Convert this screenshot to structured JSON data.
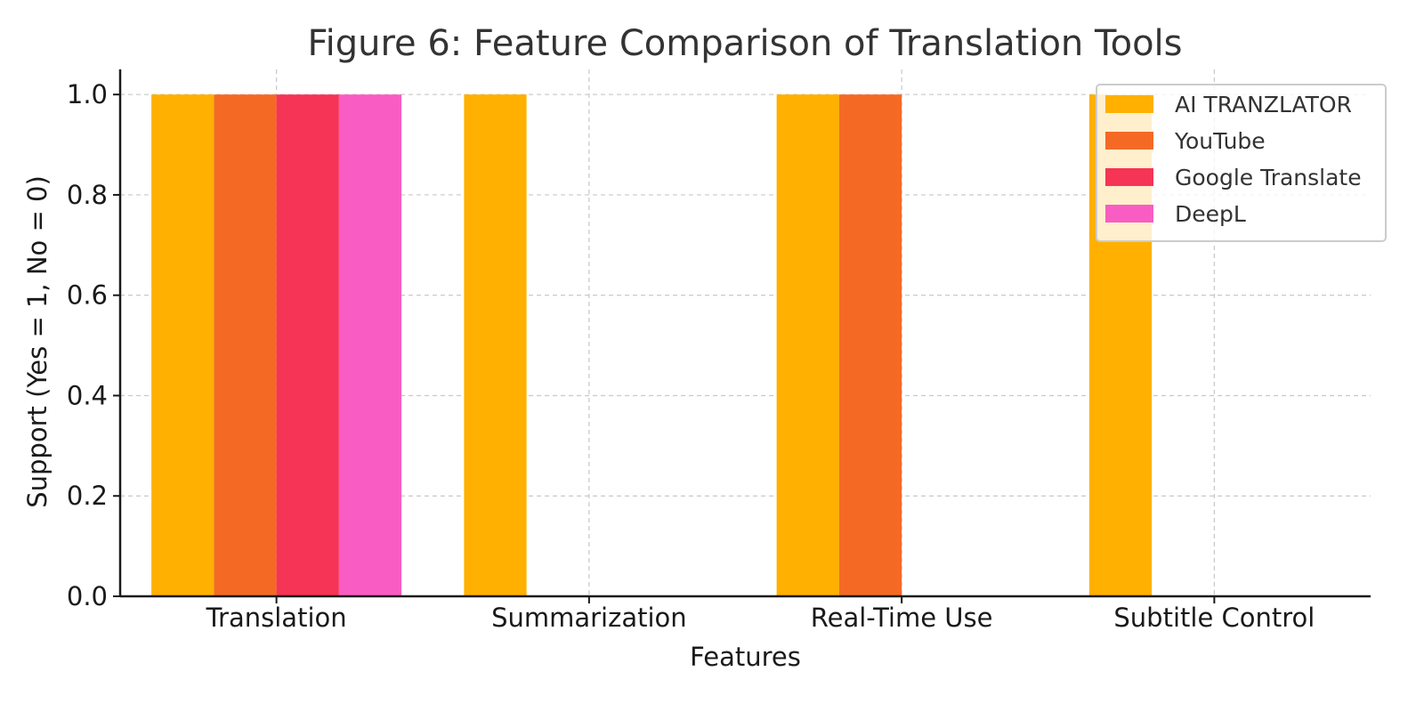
{
  "chart_data": {
    "type": "bar",
    "title": "Figure 6: Feature Comparison of Translation Tools",
    "xlabel": "Features",
    "ylabel": "Support (Yes = 1, No = 0)",
    "categories": [
      "Translation",
      "Summarization",
      "Real-Time Use",
      "Subtitle Control"
    ],
    "series": [
      {
        "name": "AI TRANZLATOR",
        "color": "#FFB000",
        "values": [
          1,
          1,
          1,
          1
        ]
      },
      {
        "name": "YouTube",
        "color": "#F46A25",
        "values": [
          1,
          0,
          1,
          0
        ]
      },
      {
        "name": "Google Translate",
        "color": "#F63456",
        "values": [
          1,
          0,
          0,
          0
        ]
      },
      {
        "name": "DeepL",
        "color": "#F95DC3",
        "values": [
          1,
          0,
          0,
          0
        ]
      }
    ],
    "ylim": [
      0,
      1.05
    ],
    "yticks": [
      0.0,
      0.2,
      0.4,
      0.6,
      0.8,
      1.0
    ],
    "ytick_labels": [
      "0.0",
      "0.2",
      "0.4",
      "0.6",
      "0.8",
      "1.0"
    ],
    "grid": true,
    "legend_position": "top-right"
  }
}
